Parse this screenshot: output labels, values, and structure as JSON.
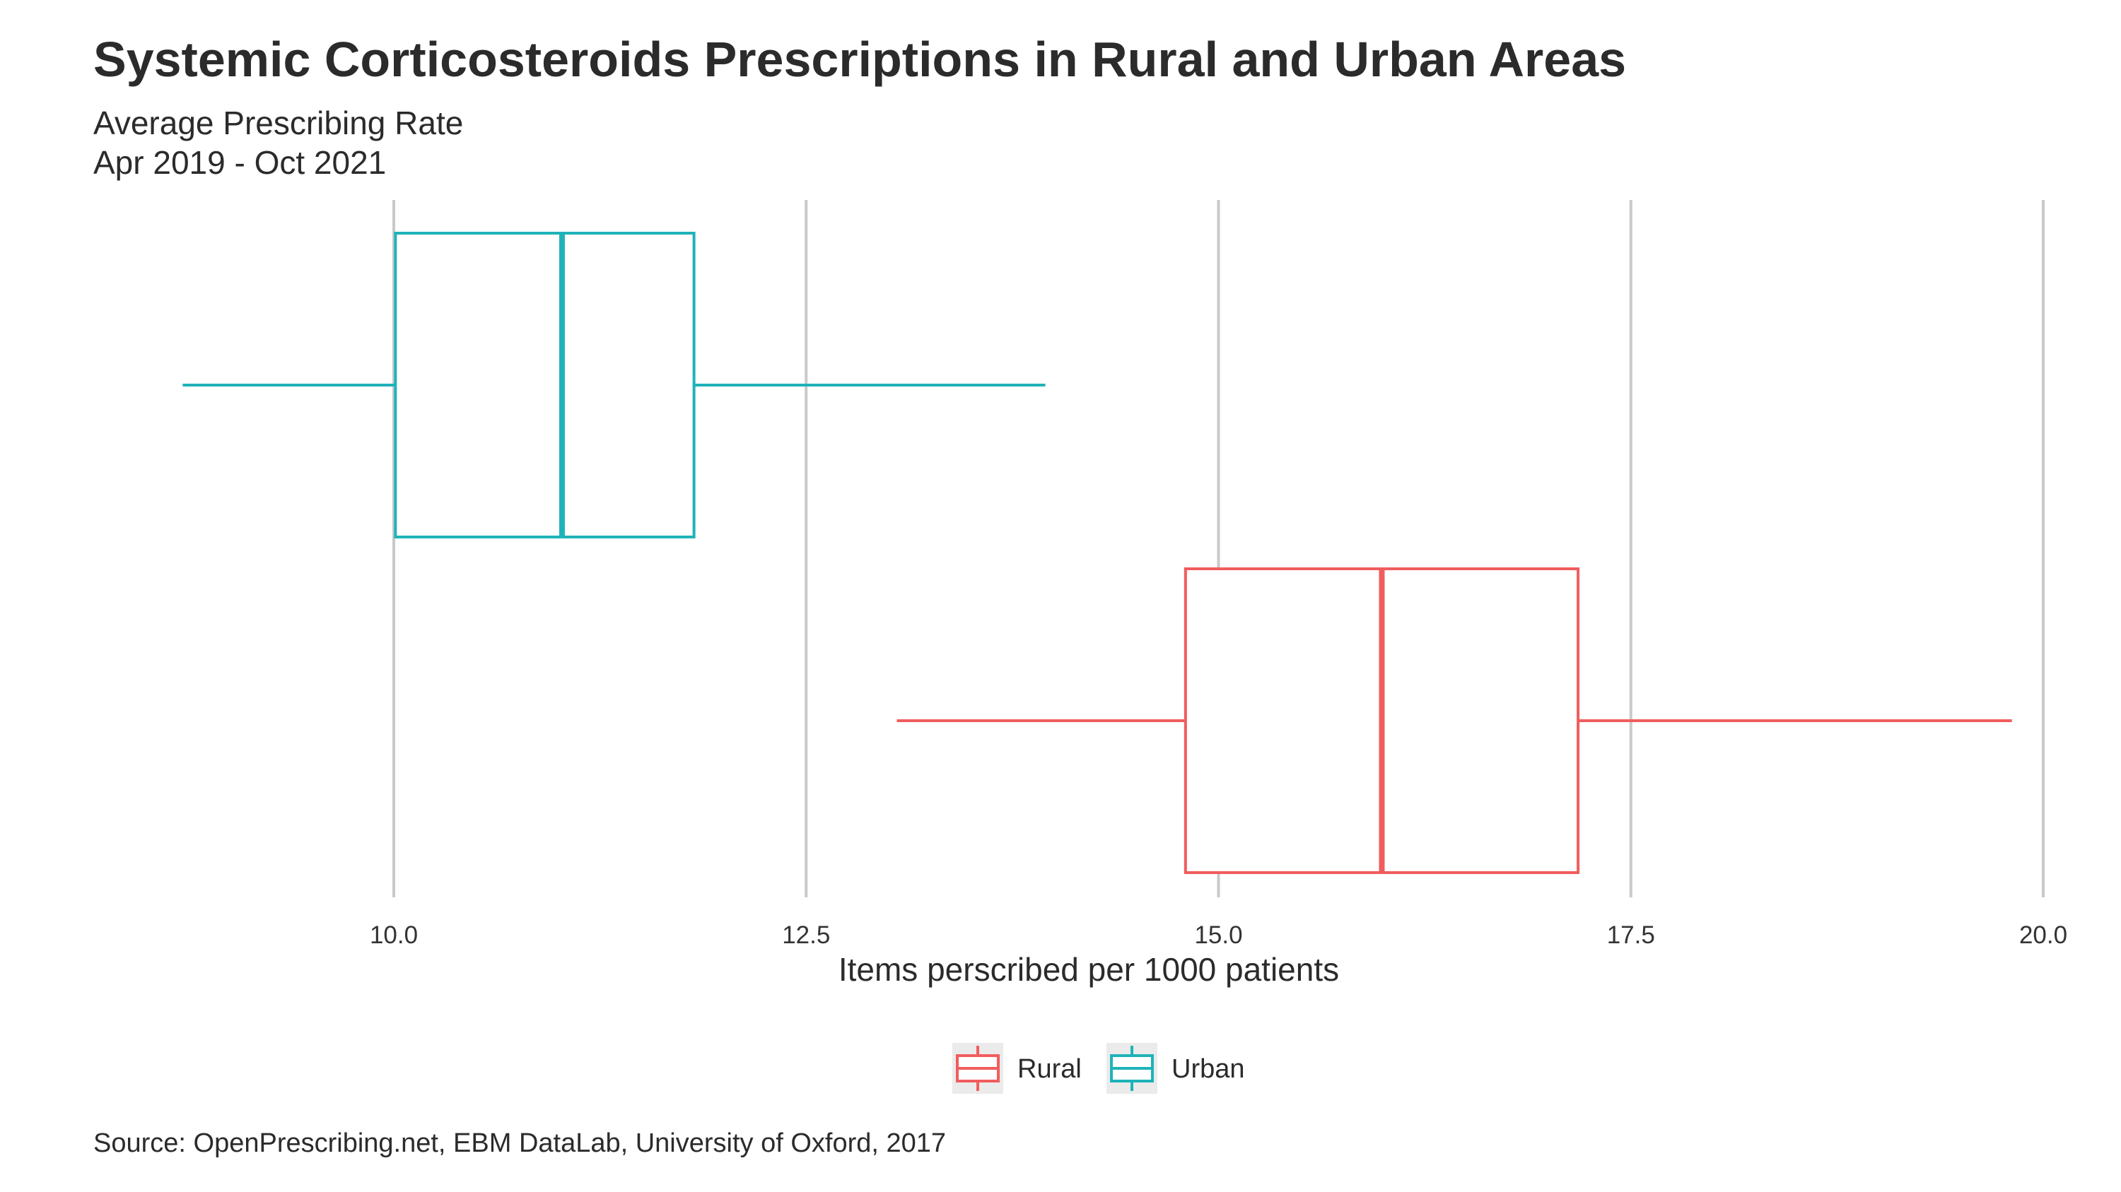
{
  "title": "Systemic Corticosteroids Prescriptions in Rural and Urban Areas",
  "subtitle_lines": [
    "Average Prescribing Rate",
    "Apr 2019 - Oct 2021"
  ],
  "caption": "Source: OpenPrescribing.net, EBM DataLab, University of Oxford, 2017",
  "chart_data": {
    "type": "boxplot",
    "orientation": "horizontal",
    "title": "Systemic Corticosteroids Prescriptions in Rural and Urban Areas",
    "subtitle": "Average Prescribing Rate\nApr 2019 - Oct 2021",
    "xlabel": "Items perscribed per 1000 patients",
    "ylabel": "",
    "xlim": [
      8.7,
      20.2
    ],
    "x_ticks": [
      10.0,
      12.5,
      15.0,
      17.5,
      20.0
    ],
    "x_tick_labels": [
      "10.0",
      "12.5",
      "15.0",
      "17.5",
      "20.0"
    ],
    "grid": "vertical major",
    "legend_position": "bottom",
    "series": [
      {
        "name": "Urban",
        "color": "#1FB3B9",
        "min": 8.72,
        "q1": 10.01,
        "median": 11.02,
        "q3": 11.82,
        "max": 13.95
      },
      {
        "name": "Rural",
        "color": "#F05D5E",
        "min": 13.05,
        "q1": 14.8,
        "median": 15.99,
        "q3": 17.18,
        "max": 19.81
      }
    ],
    "legend": [
      {
        "name": "Rural",
        "color": "#F05D5E"
      },
      {
        "name": "Urban",
        "color": "#1FB3B9"
      }
    ]
  }
}
